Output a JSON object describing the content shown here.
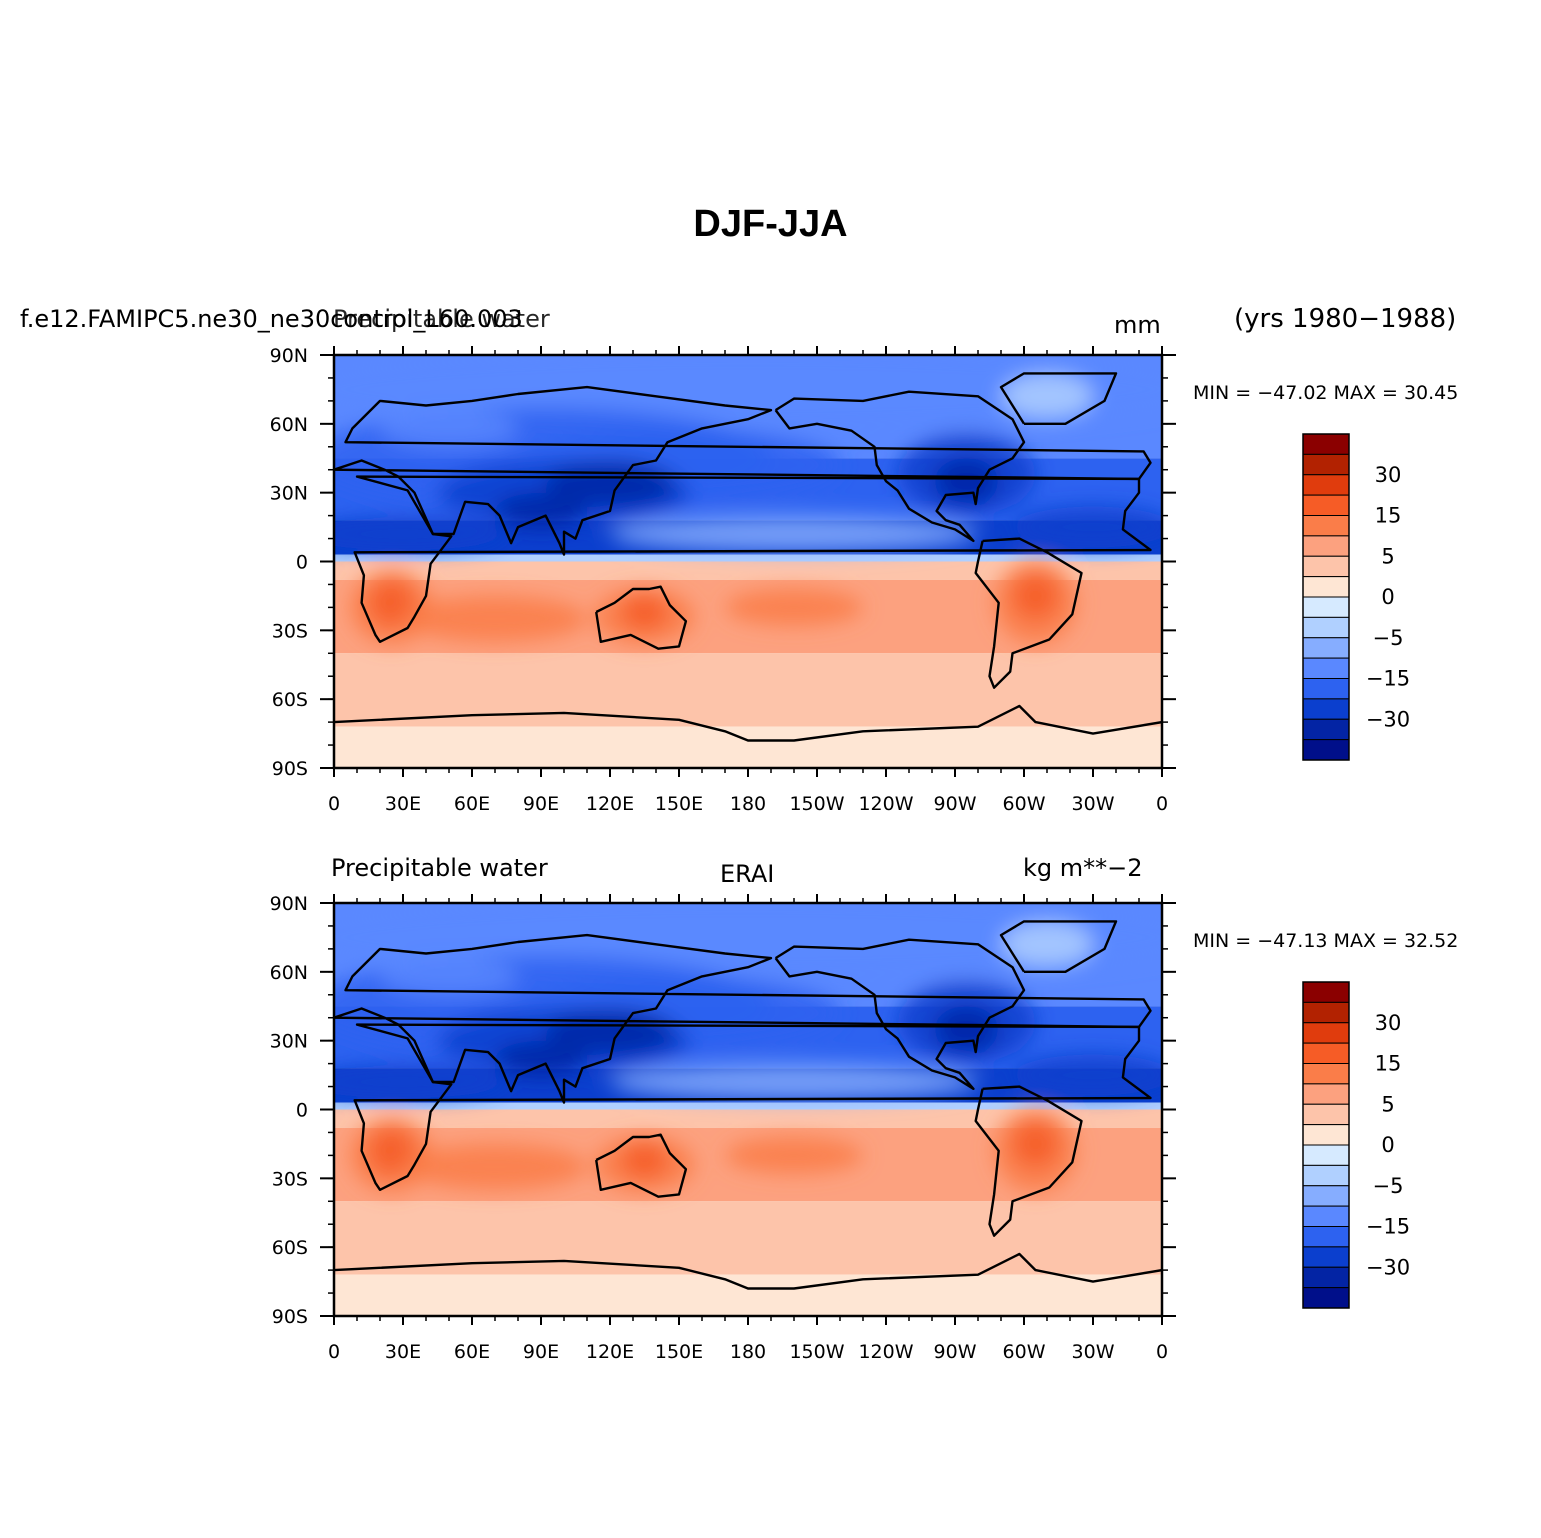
{
  "title": "DJF-JJA",
  "years": "(yrs 1980−1988)",
  "panels": [
    {
      "case_name": "f.e12.FAMIPC5.ne30_ne30control_L60.003",
      "variable": "Precipitable water",
      "units": "mm",
      "min_max": "MIN = −47.02  MAX =   30.45"
    },
    {
      "case_name": "",
      "variable": "Precipitable water",
      "source": "ERAI",
      "units": "kg m**−2",
      "min_max": "MIN = −47.13  MAX =   32.52"
    }
  ],
  "lon_ticks": [
    "0",
    "30E",
    "60E",
    "90E",
    "120E",
    "150E",
    "180",
    "150W",
    "120W",
    "90W",
    "60W",
    "30W",
    "0"
  ],
  "lat_ticks": [
    "90N",
    "60N",
    "30N",
    "0",
    "30S",
    "60S",
    "90S"
  ],
  "colorbar": {
    "labels": [
      "30",
      "15",
      "5",
      "0",
      "−5",
      "−15",
      "−30"
    ],
    "colors": [
      "#8b0000",
      "#b22201",
      "#e03c0d",
      "#f65c26",
      "#fa7d49",
      "#fca17f",
      "#fdc4aa",
      "#fee6d4",
      "#d6eaff",
      "#b0d0ff",
      "#86adff",
      "#5a88ff",
      "#2d62f0",
      "#0b3fce",
      "#0324a4",
      "#000f8a"
    ]
  },
  "chart_data": [
    {
      "type": "heatmap",
      "title": "DJF-JJA",
      "subtitle": "f.e12.FAMIPC5.ne30_ne30control_L60.003 — Precipitable water (mm)",
      "x_ticks": [
        "0",
        "30E",
        "60E",
        "90E",
        "120E",
        "150E",
        "180",
        "150W",
        "120W",
        "90W",
        "60W",
        "30W",
        "0"
      ],
      "y_ticks": [
        "90N",
        "60N",
        "30N",
        "0",
        "30S",
        "60S",
        "90S"
      ],
      "xlim": [
        0,
        360
      ],
      "ylim": [
        -90,
        90
      ],
      "min": -47.02,
      "max": 30.45,
      "colorbar_labels": [
        30,
        15,
        5,
        0,
        -5,
        -15,
        -30
      ]
    },
    {
      "type": "heatmap",
      "title": "DJF-JJA",
      "subtitle": "ERAI — Precipitable water (kg m**−2)",
      "x_ticks": [
        "0",
        "30E",
        "60E",
        "90E",
        "120E",
        "150E",
        "180",
        "150W",
        "120W",
        "90W",
        "60W",
        "30W",
        "0"
      ],
      "y_ticks": [
        "90N",
        "60N",
        "30N",
        "0",
        "30S",
        "60S",
        "90S"
      ],
      "xlim": [
        0,
        360
      ],
      "ylim": [
        -90,
        90
      ],
      "min": -47.13,
      "max": 32.52,
      "colorbar_labels": [
        30,
        15,
        5,
        0,
        -5,
        -15,
        -30
      ]
    }
  ]
}
